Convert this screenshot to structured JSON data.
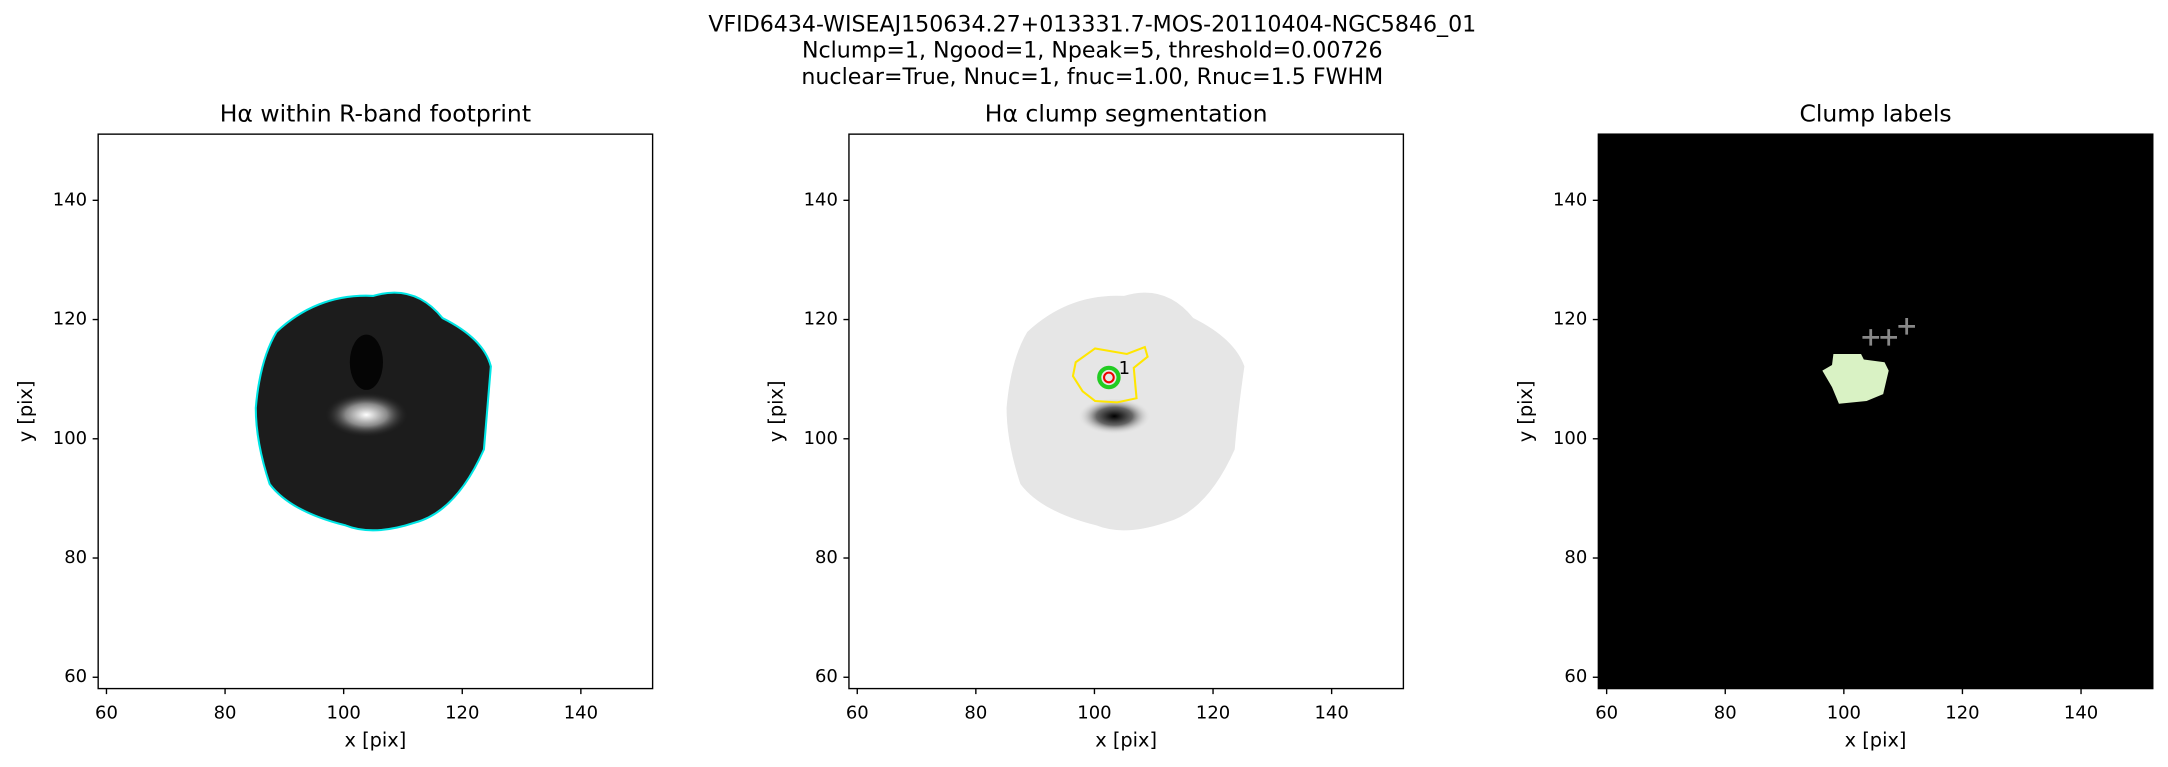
{
  "chart_data": [
    {
      "type": "image",
      "suptitle": [
        "VFID6434-WISEAJ150634.27+013331.7-MOS-20110404-NGC5846_01",
        "Nclump=1, Ngood=1, Npeak=5, threshold=0.00726",
        "nuclear=True, Nnuc=1, fnuc=1.00, Rnuc=1.5 FWHM"
      ],
      "title": "Hα within R-band footprint",
      "xlabel": "x [pix]",
      "ylabel": "y [pix]",
      "xlim": [
        58.6,
        152.1
      ],
      "ylim": [
        58.1,
        151.1
      ],
      "xticks": [
        60,
        80,
        100,
        120,
        140
      ],
      "yticks": [
        60,
        80,
        100,
        120,
        140
      ]
    },
    {
      "type": "image",
      "title": "Hα clump segmentation",
      "xlabel": "x [pix]",
      "ylabel": "y [pix]",
      "annotation": "1",
      "xlim": [
        58.6,
        152.1
      ],
      "ylim": [
        58.1,
        151.1
      ],
      "xticks": [
        60,
        80,
        100,
        120,
        140
      ],
      "yticks": [
        60,
        80,
        100,
        120,
        140
      ]
    },
    {
      "type": "image",
      "title": "Clump labels",
      "xlabel": "x [pix]",
      "ylabel": "y [pix]",
      "xlim": [
        58.6,
        152.1
      ],
      "ylim": [
        58.1,
        151.1
      ],
      "xticks": [
        60,
        80,
        100,
        120,
        140
      ],
      "yticks": [
        60,
        80,
        100,
        120,
        140
      ]
    }
  ]
}
